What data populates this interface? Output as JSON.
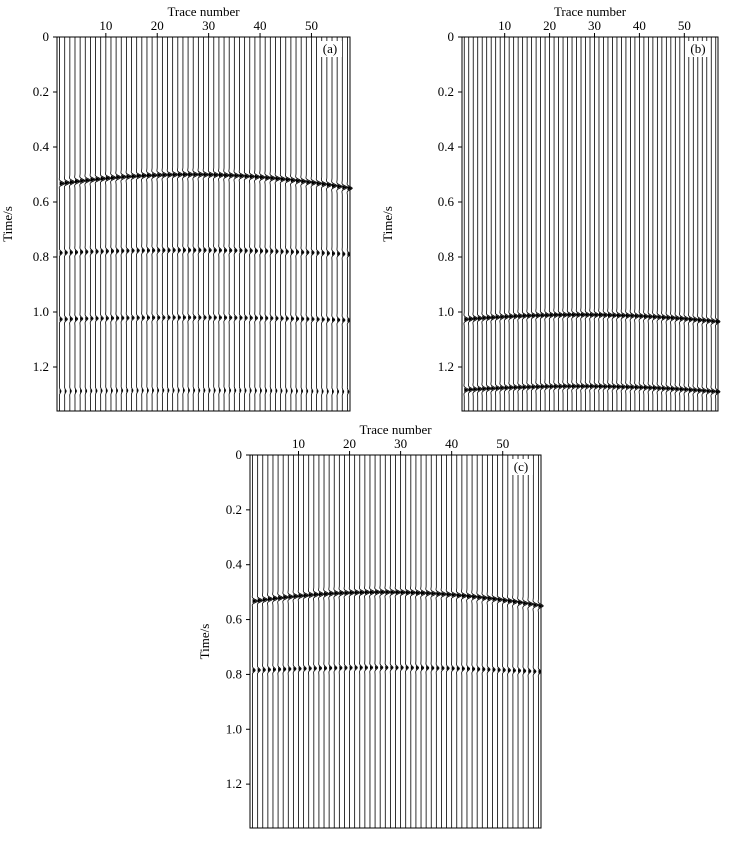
{
  "chart_data": [
    {
      "type": "seismic_wiggle",
      "panel_label": "(a)",
      "xlabel": "Trace number",
      "ylabel": "Time/s",
      "x_ticks": [
        10,
        20,
        30,
        40,
        50
      ],
      "y_ticks": [
        "0",
        "0.2",
        "0.4",
        "0.6",
        "0.8",
        "1.0",
        "1.2"
      ],
      "xlim": [
        0.5,
        57.5
      ],
      "ylim": [
        0,
        1.36
      ],
      "trace_count": 57,
      "events": [
        {
          "apex_trace": 26,
          "apex_time": 0.5,
          "edge_time": 0.55,
          "strength": "strong"
        },
        {
          "apex_trace": 26,
          "apex_time": 0.775,
          "edge_time": 0.79,
          "strength": "weak"
        },
        {
          "apex_trace": 26,
          "apex_time": 1.02,
          "edge_time": 1.03,
          "strength": "weak"
        },
        {
          "apex_trace": 26,
          "apex_time": 1.285,
          "edge_time": 1.29,
          "strength": "faint"
        }
      ]
    },
    {
      "type": "seismic_wiggle",
      "panel_label": "(b)",
      "xlabel": "Trace number",
      "ylabel": "Time/s",
      "x_ticks": [
        10,
        20,
        30,
        40,
        50
      ],
      "y_ticks": [
        "0",
        "0.2",
        "0.4",
        "0.6",
        "0.8",
        "1.0",
        "1.2"
      ],
      "xlim": [
        0.5,
        57.5
      ],
      "ylim": [
        0,
        1.36
      ],
      "trace_count": 57,
      "events": [
        {
          "apex_trace": 26,
          "apex_time": 1.01,
          "edge_time": 1.035,
          "strength": "strong"
        },
        {
          "apex_trace": 26,
          "apex_time": 1.27,
          "edge_time": 1.29,
          "strength": "strong"
        }
      ]
    },
    {
      "type": "seismic_wiggle",
      "panel_label": "(c)",
      "xlabel": "Trace number",
      "ylabel": "Time/s",
      "x_ticks": [
        10,
        20,
        30,
        40,
        50
      ],
      "y_ticks": [
        "0",
        "0.2",
        "0.4",
        "0.6",
        "0.8",
        "1.0",
        "1.2"
      ],
      "xlim": [
        0.5,
        57.5
      ],
      "ylim": [
        0,
        1.36
      ],
      "trace_count": 57,
      "events": [
        {
          "apex_trace": 26,
          "apex_time": 0.5,
          "edge_time": 0.55,
          "strength": "strong"
        },
        {
          "apex_trace": 26,
          "apex_time": 0.775,
          "edge_time": 0.79,
          "strength": "weak"
        }
      ]
    }
  ]
}
